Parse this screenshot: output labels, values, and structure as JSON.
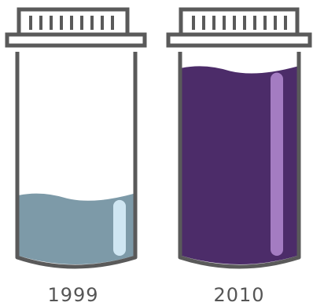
{
  "jars": [
    {
      "year": "1999",
      "fill_level": 0.32,
      "liquid_color": "#7d9aa8",
      "highlight_color": "#cfe6f2"
    },
    {
      "year": "2010",
      "fill_level": 0.93,
      "liquid_color": "#4c2c69",
      "highlight_color": "#a47cc2"
    }
  ],
  "outline_color": "#5a5a5a"
}
